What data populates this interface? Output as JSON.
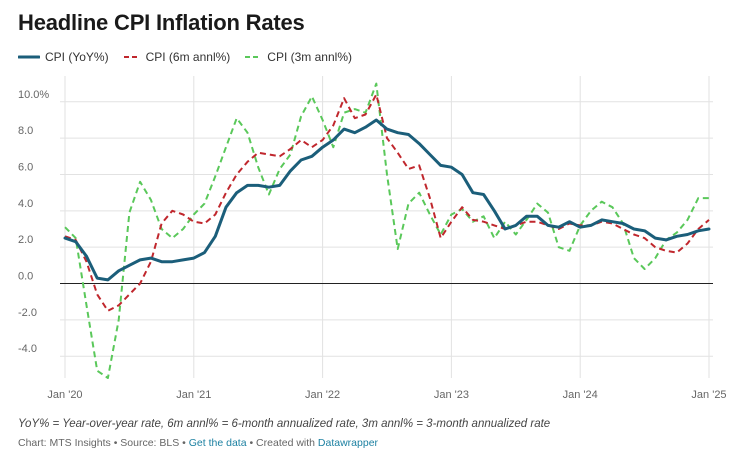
{
  "title": "Headline CPI Inflation Rates",
  "colors": {
    "yoy": "#1b5e7a",
    "m6": "#c0272d",
    "m3": "#5ac85a",
    "zero": "#222222",
    "grid": "#e2e2e2",
    "tick": "#666666"
  },
  "footnote": "YoY% = Year-over-year rate, 6m annl% = 6-month annualized rate, 3m annl% = 3-month annualized rate",
  "footer": {
    "chart": "Chart: MTS Insights • Source: BLS • ",
    "get_data": "Get the data",
    "created": " • Created with ",
    "tool": "Datawrapper"
  },
  "chart_data": {
    "type": "line",
    "x_ticks": [
      "Jan '20",
      "Jan '21",
      "Jan '22",
      "Jan '23",
      "Jan '24",
      "Jan '25"
    ],
    "x_dates": [
      "2020-01",
      "2020-02",
      "2020-03",
      "2020-04",
      "2020-05",
      "2020-06",
      "2020-07",
      "2020-08",
      "2020-09",
      "2020-10",
      "2020-11",
      "2020-12",
      "2021-01",
      "2021-02",
      "2021-03",
      "2021-04",
      "2021-05",
      "2021-06",
      "2021-07",
      "2021-08",
      "2021-09",
      "2021-10",
      "2021-11",
      "2021-12",
      "2022-01",
      "2022-02",
      "2022-03",
      "2022-04",
      "2022-05",
      "2022-06",
      "2022-07",
      "2022-08",
      "2022-09",
      "2022-10",
      "2022-11",
      "2022-12",
      "2023-01",
      "2023-02",
      "2023-03",
      "2023-04",
      "2023-05",
      "2023-06",
      "2023-07",
      "2023-08",
      "2023-09",
      "2023-10",
      "2023-11",
      "2023-12",
      "2024-01",
      "2024-02",
      "2024-03",
      "2024-04",
      "2024-05",
      "2024-06",
      "2024-07",
      "2024-08",
      "2024-09",
      "2024-10",
      "2024-11",
      "2024-12",
      "2025-01"
    ],
    "y_ticks": [
      -4.0,
      -2.0,
      0.0,
      2.0,
      4.0,
      6.0,
      8.0,
      10.0
    ],
    "y_tick_labels": [
      "-4.0",
      "-2.0",
      "0.0",
      "2.0",
      "4.0",
      "6.0",
      "8.0",
      "10.0%"
    ],
    "ylim": [
      -5.2,
      11.2
    ],
    "grid": true,
    "legend_position": "top-left",
    "series": [
      {
        "key": "yoy",
        "name": "CPI (YoY%)",
        "style": "solid",
        "values": [
          2.5,
          2.3,
          1.5,
          0.3,
          0.2,
          0.7,
          1.0,
          1.3,
          1.4,
          1.2,
          1.2,
          1.3,
          1.4,
          1.7,
          2.6,
          4.2,
          5.0,
          5.4,
          5.4,
          5.3,
          5.4,
          6.2,
          6.8,
          7.0,
          7.5,
          7.9,
          8.5,
          8.3,
          8.6,
          9.0,
          8.5,
          8.3,
          8.2,
          7.7,
          7.1,
          6.5,
          6.4,
          6.0,
          5.0,
          4.9,
          4.0,
          3.0,
          3.2,
          3.7,
          3.7,
          3.2,
          3.1,
          3.4,
          3.1,
          3.2,
          3.5,
          3.4,
          3.3,
          3.0,
          2.9,
          2.5,
          2.4,
          2.6,
          2.7,
          2.9,
          3.0
        ]
      },
      {
        "key": "m6",
        "name": "CPI (6m annl%)",
        "style": "dashed",
        "values": [
          2.6,
          2.4,
          1.2,
          -0.6,
          -1.5,
          -1.2,
          -0.6,
          0.0,
          1.2,
          3.3,
          4.0,
          3.8,
          3.4,
          3.3,
          3.8,
          5.0,
          6.0,
          6.7,
          7.2,
          7.1,
          7.0,
          7.4,
          7.9,
          7.5,
          7.9,
          8.7,
          10.2,
          9.1,
          9.3,
          10.4,
          8.0,
          7.2,
          6.3,
          6.5,
          4.7,
          2.5,
          3.4,
          4.2,
          3.5,
          3.4,
          3.2,
          3.0,
          3.2,
          3.4,
          3.4,
          3.2,
          3.0,
          3.3,
          3.2,
          3.2,
          3.4,
          3.3,
          3.0,
          2.7,
          2.5,
          2.0,
          1.8,
          1.7,
          2.2,
          3.0,
          3.5
        ]
      },
      {
        "key": "m3",
        "name": "CPI (3m annl%)",
        "style": "dashed",
        "values": [
          3.1,
          2.5,
          -1.2,
          -4.8,
          -5.2,
          -2.0,
          3.9,
          5.6,
          4.6,
          3.0,
          2.5,
          3.0,
          3.8,
          4.4,
          5.9,
          7.5,
          9.1,
          8.3,
          6.4,
          4.9,
          6.3,
          7.1,
          9.2,
          10.3,
          9.0,
          7.5,
          9.4,
          9.6,
          9.4,
          11.0,
          6.0,
          1.9,
          4.4,
          5.0,
          3.8,
          2.7,
          3.8,
          4.1,
          3.4,
          3.7,
          2.5,
          3.4,
          2.7,
          3.5,
          4.4,
          3.9,
          2.0,
          1.8,
          3.2,
          4.0,
          4.5,
          4.2,
          3.3,
          1.4,
          0.8,
          1.4,
          2.4,
          2.8,
          3.5,
          4.7,
          4.7
        ]
      }
    ]
  }
}
